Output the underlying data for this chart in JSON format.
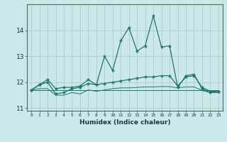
{
  "xlabel": "Humidex (Indice chaleur)",
  "x": [
    0,
    1,
    2,
    3,
    4,
    5,
    6,
    7,
    8,
    9,
    10,
    11,
    12,
    13,
    14,
    15,
    16,
    17,
    18,
    19,
    20,
    21,
    22,
    23
  ],
  "line1": [
    11.7,
    11.9,
    12.1,
    11.75,
    11.8,
    11.8,
    11.85,
    12.1,
    11.9,
    13.0,
    12.45,
    13.6,
    14.1,
    13.2,
    13.4,
    14.55,
    13.35,
    13.4,
    11.8,
    12.25,
    12.3,
    11.75,
    11.6,
    11.65
  ],
  "line2": [
    11.7,
    11.9,
    12.0,
    11.55,
    11.6,
    11.75,
    11.8,
    11.95,
    11.9,
    11.95,
    12.0,
    12.05,
    12.1,
    12.15,
    12.2,
    12.2,
    12.25,
    12.25,
    11.85,
    12.2,
    12.25,
    11.8,
    11.65,
    11.65
  ],
  "line3": [
    11.7,
    11.75,
    11.75,
    11.5,
    11.5,
    11.6,
    11.55,
    11.7,
    11.65,
    11.7,
    11.75,
    11.78,
    11.78,
    11.8,
    11.82,
    11.82,
    11.83,
    11.83,
    11.78,
    11.82,
    11.82,
    11.68,
    11.6,
    11.6
  ],
  "line4": [
    11.7,
    11.7,
    11.7,
    11.7,
    11.7,
    11.7,
    11.7,
    11.7,
    11.7,
    11.7,
    11.7,
    11.7,
    11.7,
    11.7,
    11.7,
    11.7,
    11.7,
    11.7,
    11.7,
    11.7,
    11.7,
    11.7,
    11.7,
    11.7
  ],
  "line_color": "#1a7a6e",
  "bg_color": "#cce8e8",
  "grid_color": "#aacccc",
  "ylim": [
    10.9,
    15.0
  ],
  "yticks": [
    11,
    12,
    13,
    14
  ],
  "xlim": [
    -0.5,
    23.5
  ]
}
